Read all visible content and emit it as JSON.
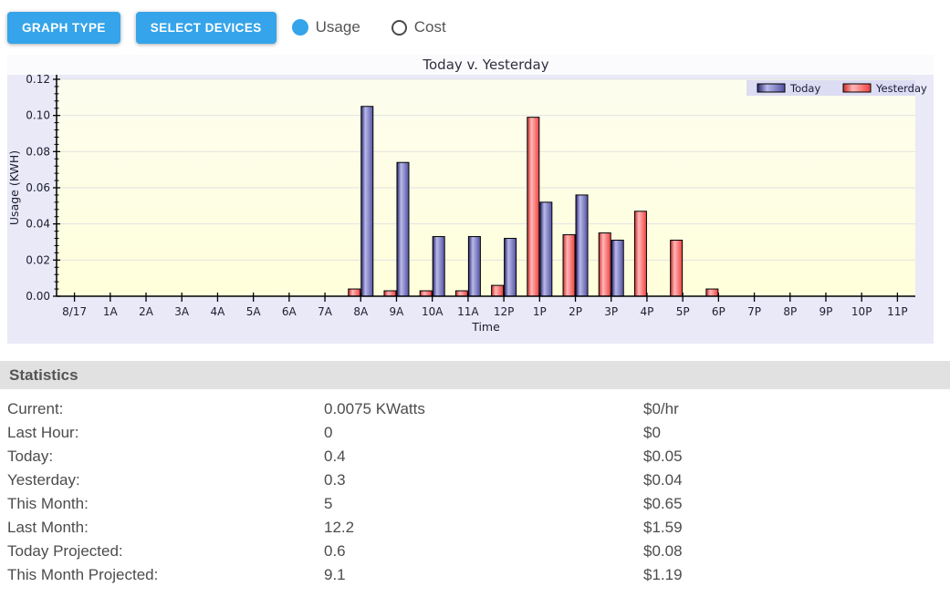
{
  "toolbar": {
    "buttons": [
      "GRAPH TYPE",
      "SELECT DEVICES"
    ],
    "radios": [
      {
        "label": "Usage",
        "selected": true
      },
      {
        "label": "Cost",
        "selected": false
      }
    ],
    "accent_color": "#35a4ea"
  },
  "chart_data": {
    "type": "bar",
    "title": "Today v. Yesterday",
    "xlabel": "Time",
    "ylabel": "Usage (KWH)",
    "ylim": [
      0,
      0.12
    ],
    "ytick_step": 0.02,
    "y_minor_step": 0.004,
    "grid": true,
    "legend_position": "top-right",
    "categories": [
      "8/17",
      "1A",
      "2A",
      "3A",
      "4A",
      "5A",
      "6A",
      "7A",
      "8A",
      "9A",
      "10A",
      "11A",
      "12P",
      "1P",
      "2P",
      "3P",
      "4P",
      "5P",
      "6P",
      "7P",
      "8P",
      "9P",
      "10P",
      "11P"
    ],
    "series": [
      {
        "name": "Today",
        "side": "right",
        "color_dark": "#26266e",
        "color_light": "#b9b9ea",
        "color_end": "#5252a0",
        "values": [
          0,
          0,
          0,
          0,
          0,
          0,
          0,
          0,
          0.105,
          0.074,
          0.033,
          0.033,
          0.032,
          0.052,
          0.056,
          0.031,
          0,
          0,
          0,
          0,
          0,
          0,
          0,
          0
        ]
      },
      {
        "name": "Yesterday",
        "side": "left",
        "color_dark": "#cc2a2a",
        "color_light": "#ffb8b8",
        "color_end": "#f04040",
        "values": [
          0,
          0,
          0,
          0,
          0,
          0,
          0,
          0,
          0.004,
          0.003,
          0.003,
          0.003,
          0.006,
          0.099,
          0.034,
          0.035,
          0.047,
          0.031,
          0.004,
          0,
          0,
          0,
          0,
          0
        ]
      }
    ],
    "colors": {
      "frame_bg": "#e9e9f7",
      "title_strip": "#fbfbfe",
      "legend_bg": "#dcdcf3",
      "plot_top": "#fdfdef",
      "plot_bottom": "#ffffdb",
      "gridline": "#e3e3e3",
      "axis": "#000000",
      "text": "#1d1d33"
    }
  },
  "statistics": {
    "header": "Statistics",
    "rows": [
      {
        "label": "Current:",
        "value": "0.0075 KWatts",
        "cost": "$0/hr"
      },
      {
        "label": "Last Hour:",
        "value": "0",
        "cost": "$0"
      },
      {
        "label": "Today:",
        "value": "0.4",
        "cost": "$0.05"
      },
      {
        "label": "Yesterday:",
        "value": "0.3",
        "cost": "$0.04"
      },
      {
        "label": "This Month:",
        "value": "5",
        "cost": "$0.65"
      },
      {
        "label": "Last Month:",
        "value": "12.2",
        "cost": "$1.59"
      },
      {
        "label": "Today Projected:",
        "value": "0.6",
        "cost": "$0.08"
      },
      {
        "label": "This Month Projected:",
        "value": "9.1",
        "cost": "$1.19"
      }
    ]
  }
}
